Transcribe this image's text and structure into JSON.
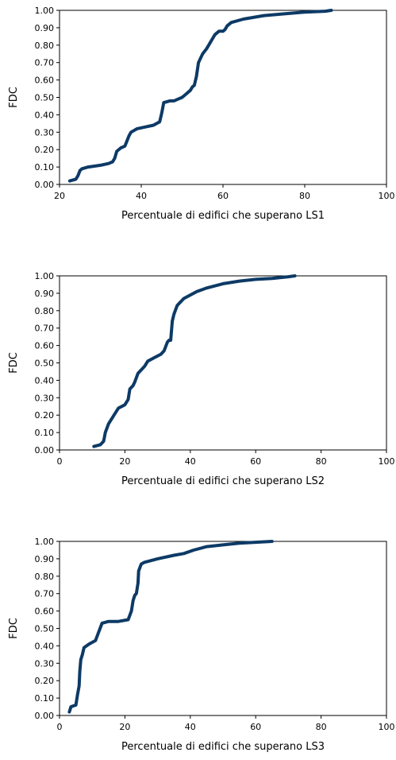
{
  "chart_data": [
    {
      "type": "line",
      "ylabel": "FDC",
      "xlabel": "Percentuale di edifici che superano LS1",
      "xlim": [
        20,
        100
      ],
      "ylim": [
        0,
        1
      ],
      "x_ticks": [
        "20",
        "40",
        "60",
        "80",
        "100"
      ],
      "y_ticks": [
        "0.00",
        "0.10",
        "0.20",
        "0.30",
        "0.40",
        "0.50",
        "0.60",
        "0.70",
        "0.80",
        "0.90",
        "1.00"
      ],
      "grid": false,
      "line_color": "#0d3a66",
      "series": [
        {
          "x": [
            22.5,
            24,
            24.5,
            25,
            25.5,
            27,
            30,
            32,
            33,
            33.5,
            34,
            35,
            36,
            36.5,
            37,
            37.5,
            39,
            41,
            43,
            44.5,
            45,
            45.5,
            47,
            48,
            49,
            50,
            51,
            52,
            52.5,
            53,
            53.5,
            54,
            55,
            56,
            57,
            58,
            59,
            60,
            60.5,
            61,
            62,
            65,
            70,
            75,
            80,
            85,
            86.5
          ],
          "y": [
            0.02,
            0.03,
            0.05,
            0.08,
            0.09,
            0.1,
            0.11,
            0.12,
            0.13,
            0.15,
            0.19,
            0.21,
            0.22,
            0.25,
            0.28,
            0.3,
            0.32,
            0.33,
            0.34,
            0.36,
            0.41,
            0.47,
            0.48,
            0.48,
            0.49,
            0.5,
            0.52,
            0.54,
            0.56,
            0.57,
            0.62,
            0.7,
            0.75,
            0.78,
            0.82,
            0.86,
            0.88,
            0.88,
            0.89,
            0.91,
            0.93,
            0.95,
            0.97,
            0.98,
            0.99,
            0.995,
            1.0
          ]
        }
      ]
    },
    {
      "type": "line",
      "ylabel": "FDC",
      "xlabel": "Percentuale di edifici che superano LS2",
      "xlim": [
        0,
        100
      ],
      "ylim": [
        0,
        1
      ],
      "x_ticks": [
        "0",
        "20",
        "40",
        "60",
        "80",
        "100"
      ],
      "y_ticks": [
        "0.00",
        "0.10",
        "0.20",
        "0.30",
        "0.40",
        "0.50",
        "0.60",
        "0.70",
        "0.80",
        "0.90",
        "1.00"
      ],
      "grid": false,
      "line_color": "#0d3a66",
      "series": [
        {
          "x": [
            10.5,
            12.5,
            13.5,
            14,
            15,
            16,
            17,
            18,
            19,
            20,
            21,
            21.5,
            22.5,
            23,
            24,
            25,
            26,
            27,
            29,
            31,
            32,
            33,
            33.5,
            34,
            34.5,
            35,
            36,
            38,
            40,
            42,
            45,
            50,
            55,
            60,
            65,
            70,
            72
          ],
          "y": [
            0.02,
            0.03,
            0.05,
            0.1,
            0.15,
            0.18,
            0.21,
            0.24,
            0.25,
            0.26,
            0.29,
            0.35,
            0.37,
            0.39,
            0.44,
            0.46,
            0.48,
            0.51,
            0.53,
            0.55,
            0.57,
            0.62,
            0.63,
            0.63,
            0.74,
            0.78,
            0.83,
            0.87,
            0.89,
            0.91,
            0.93,
            0.955,
            0.97,
            0.98,
            0.985,
            0.995,
            1.0
          ]
        }
      ]
    },
    {
      "type": "line",
      "ylabel": "FDC",
      "xlabel": "Percentuale di edifici che superano LS3",
      "xlim": [
        0,
        100
      ],
      "ylim": [
        0,
        1
      ],
      "x_ticks": [
        "0",
        "20",
        "40",
        "60",
        "80",
        "100"
      ],
      "y_ticks": [
        "0.00",
        "0.10",
        "0.20",
        "0.30",
        "0.40",
        "0.50",
        "0.60",
        "0.70",
        "0.80",
        "0.90",
        "1.00"
      ],
      "grid": false,
      "line_color": "#0d3a66",
      "series": [
        {
          "x": [
            3,
            3.5,
            5,
            5.5,
            6,
            6.2,
            6.5,
            7,
            7.5,
            9,
            11,
            12,
            13,
            15,
            18,
            21,
            22,
            22.5,
            23,
            23.5,
            24,
            24.2,
            25,
            26,
            30,
            35,
            38,
            41,
            45,
            50,
            55,
            60,
            65
          ],
          "y": [
            0.02,
            0.05,
            0.06,
            0.12,
            0.17,
            0.25,
            0.32,
            0.35,
            0.39,
            0.41,
            0.43,
            0.48,
            0.53,
            0.54,
            0.54,
            0.55,
            0.6,
            0.66,
            0.69,
            0.7,
            0.76,
            0.83,
            0.87,
            0.88,
            0.9,
            0.92,
            0.93,
            0.95,
            0.97,
            0.98,
            0.99,
            0.995,
            1.0
          ]
        }
      ]
    }
  ]
}
